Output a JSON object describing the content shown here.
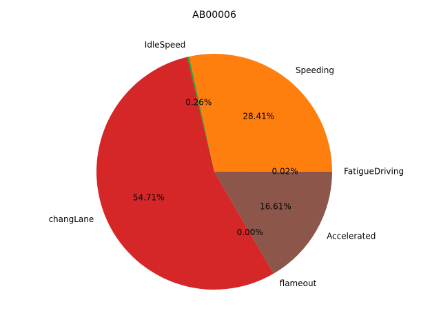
{
  "chart_data": {
    "type": "pie",
    "title": "AB00006",
    "start_angle_deg": 0,
    "direction": "counterclockwise",
    "slices": [
      {
        "label": "FatigueDriving",
        "value": 0.02,
        "pct_text": "0.02%",
        "color": "#1f77b4"
      },
      {
        "label": "Speeding",
        "value": 28.41,
        "pct_text": "28.41%",
        "color": "#ff7f0e"
      },
      {
        "label": "IdleSpeed",
        "value": 0.26,
        "pct_text": "0.26%",
        "color": "#2ca02c"
      },
      {
        "label": "changLane",
        "value": 54.71,
        "pct_text": "54.71%",
        "color": "#d62728"
      },
      {
        "label": "flameout",
        "value": 0.0,
        "pct_text": "0.00%",
        "color": "#9467bd"
      },
      {
        "label": "Accelerated",
        "value": 16.61,
        "pct_text": "16.61%",
        "color": "#8c564b"
      }
    ]
  }
}
